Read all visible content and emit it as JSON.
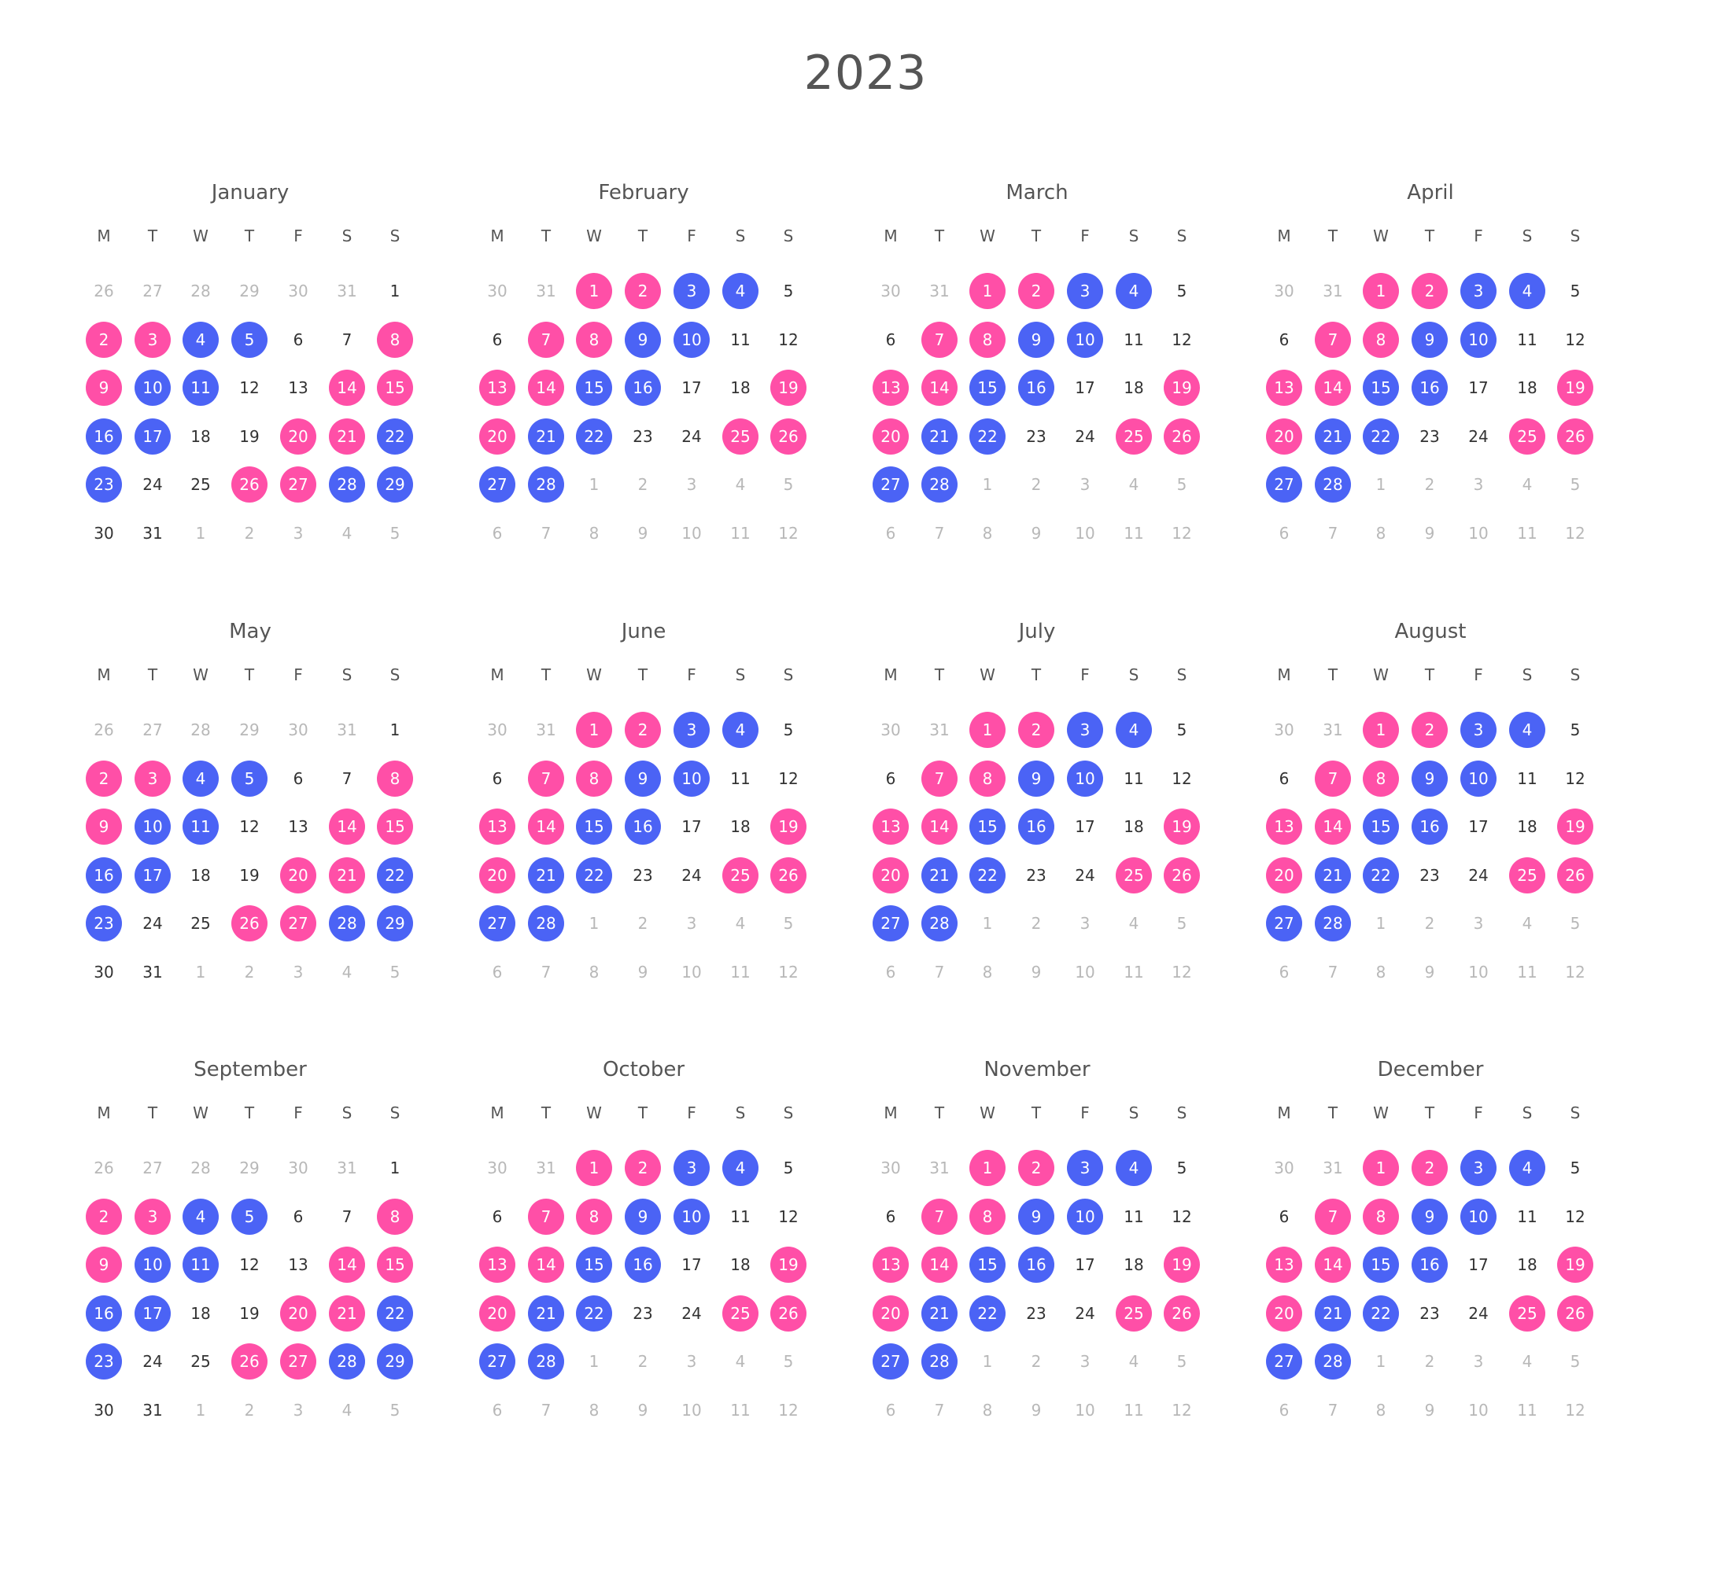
{
  "year": "2023",
  "weekdays": [
    "M",
    "T",
    "W",
    "T",
    "F",
    "S",
    "S"
  ],
  "colors": {
    "pink": "#ff4fa7",
    "blue": "#4b63f5",
    "muted": "#b8b8b8",
    "text": "#333333"
  },
  "month_names": [
    "January",
    "February",
    "March",
    "April",
    "May",
    "June",
    "July",
    "August",
    "September",
    "October",
    "November",
    "December"
  ],
  "layouts": {
    "A": {
      "days": [
        "26",
        "27",
        "28",
        "29",
        "30",
        "31",
        "1",
        "2",
        "3",
        "4",
        "5",
        "6",
        "7",
        "8",
        "9",
        "10",
        "11",
        "12",
        "13",
        "14",
        "15",
        "16",
        "17",
        "18",
        "19",
        "20",
        "21",
        "22",
        "23",
        "24",
        "25",
        "26",
        "27",
        "28",
        "29",
        "30",
        "31",
        "1",
        "2",
        "3",
        "4",
        "5"
      ],
      "states": [
        "o",
        "o",
        "o",
        "o",
        "o",
        "o",
        "n",
        "p",
        "p",
        "b",
        "b",
        "n",
        "n",
        "p",
        "p",
        "b",
        "b",
        "n",
        "n",
        "p",
        "p",
        "b",
        "b",
        "n",
        "n",
        "p",
        "p",
        "b",
        "b",
        "n",
        "n",
        "p",
        "p",
        "b",
        "b",
        "n",
        "n",
        "o",
        "o",
        "o",
        "o",
        "o"
      ]
    },
    "B": {
      "days": [
        "30",
        "31",
        "1",
        "2",
        "3",
        "4",
        "5",
        "6",
        "7",
        "8",
        "9",
        "10",
        "11",
        "12",
        "13",
        "14",
        "15",
        "16",
        "17",
        "18",
        "19",
        "20",
        "21",
        "22",
        "23",
        "24",
        "25",
        "26",
        "27",
        "28",
        "1",
        "2",
        "3",
        "4",
        "5",
        "6",
        "7",
        "8",
        "9",
        "10",
        "11",
        "12"
      ],
      "states": [
        "o",
        "o",
        "p",
        "p",
        "b",
        "b",
        "n",
        "n",
        "p",
        "p",
        "b",
        "b",
        "n",
        "n",
        "p",
        "p",
        "b",
        "b",
        "n",
        "n",
        "p",
        "p",
        "b",
        "b",
        "n",
        "n",
        "p",
        "p",
        "b",
        "b",
        "o",
        "o",
        "o",
        "o",
        "o",
        "o",
        "o",
        "o",
        "o",
        "o",
        "o",
        "o"
      ]
    }
  },
  "month_layouts": [
    "A",
    "B",
    "B",
    "B",
    "A",
    "B",
    "B",
    "B",
    "A",
    "B",
    "B",
    "B"
  ]
}
